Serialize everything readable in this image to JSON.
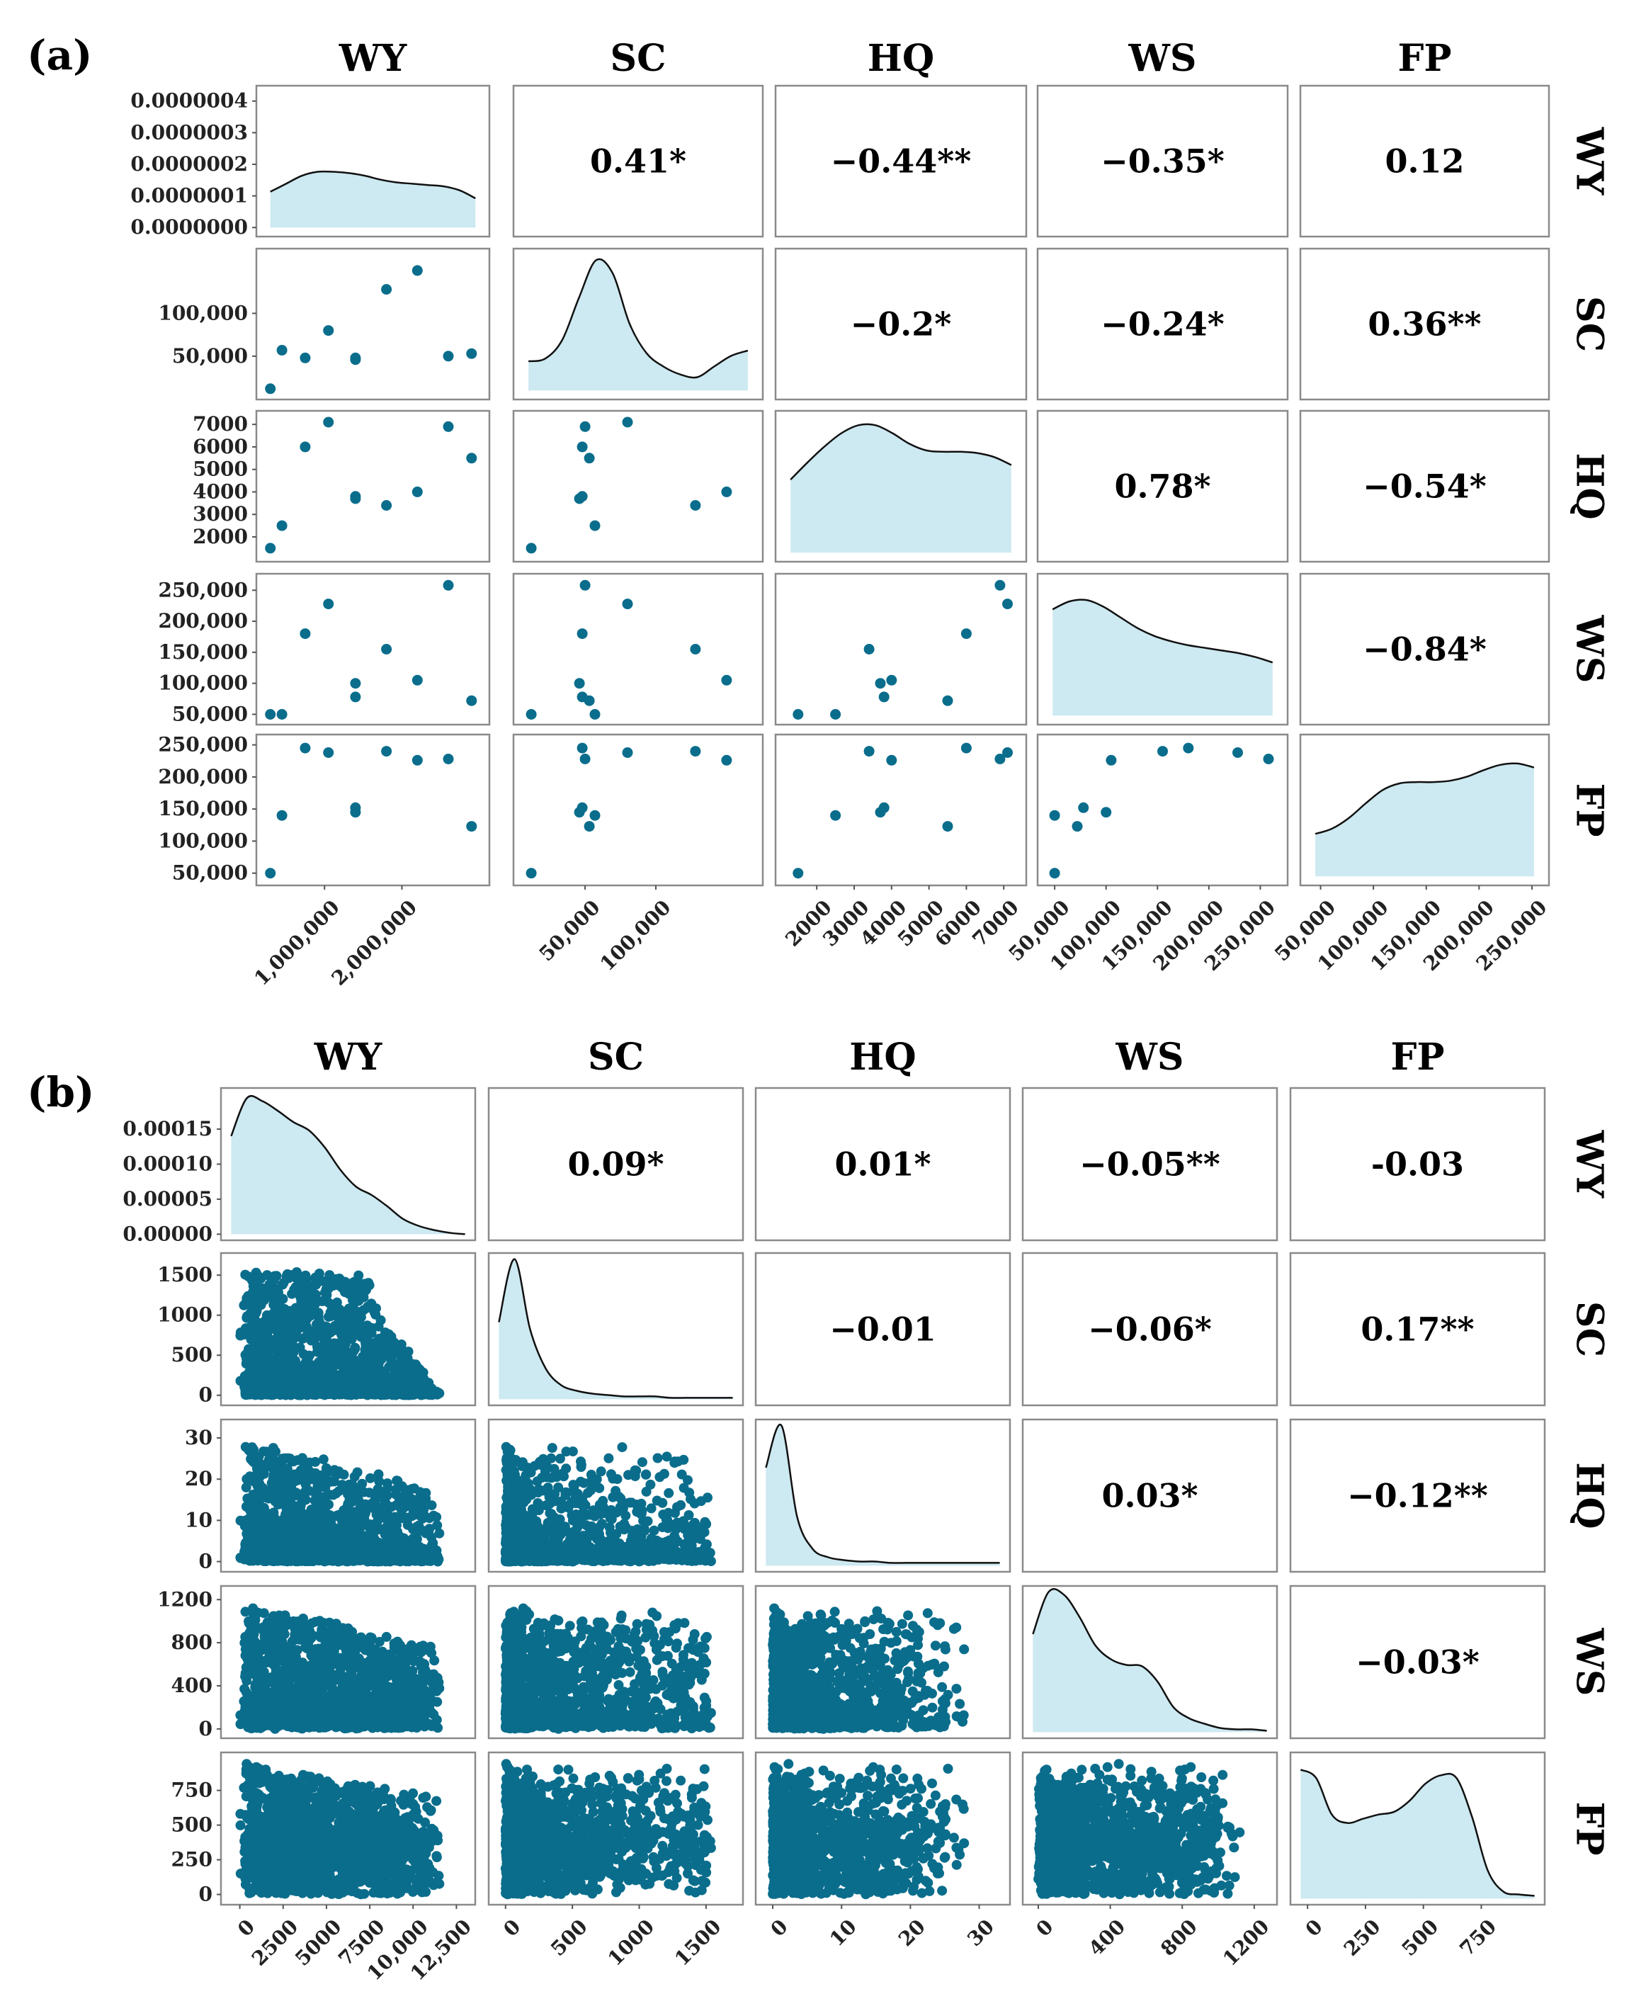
{
  "colors": {
    "point": "#0a6d8c",
    "density_fill": "#cde9f1",
    "density_line": "#111111",
    "frame": "#8a8a8a"
  },
  "variables": [
    "WY",
    "SC",
    "HQ",
    "WS",
    "FP"
  ],
  "chart_data": [
    {
      "type": "scatter-matrix",
      "panel_label": "(a)",
      "column_headers": [
        "WY",
        "SC",
        "HQ",
        "WS",
        "FP"
      ],
      "row_headers": [
        "WY",
        "SC",
        "HQ",
        "WS",
        "FP"
      ],
      "correlations": [
        {
          "row": 0,
          "col": 1,
          "label": "0.41*"
        },
        {
          "row": 0,
          "col": 2,
          "label": "−0.44**"
        },
        {
          "row": 0,
          "col": 3,
          "label": "−0.35*"
        },
        {
          "row": 0,
          "col": 4,
          "label": "0.12"
        },
        {
          "row": 1,
          "col": 2,
          "label": "−0.2*"
        },
        {
          "row": 1,
          "col": 3,
          "label": "−0.24*"
        },
        {
          "row": 1,
          "col": 4,
          "label": "0.36**"
        },
        {
          "row": 2,
          "col": 3,
          "label": "0.78*"
        },
        {
          "row": 2,
          "col": 4,
          "label": "−0.54*"
        },
        {
          "row": 3,
          "col": 4,
          "label": "−0.84*"
        }
      ],
      "ranges": {
        "WY": [
          300000,
          2950000
        ],
        "SC": [
          10000,
          165000
        ],
        "HQ": [
          1300,
          7200
        ],
        "WS": [
          48000,
          262000
        ],
        "FP": [
          45000,
          252000
        ]
      },
      "x_ticks": {
        "WY": [
          {
            "v": 1000000,
            "t": "1,000,000"
          },
          {
            "v": 2000000,
            "t": "2,000,000"
          }
        ],
        "SC": [
          {
            "v": 50000,
            "t": "50,000"
          },
          {
            "v": 100000,
            "t": "100,000"
          }
        ],
        "HQ": [
          {
            "v": 2000,
            "t": "2000"
          },
          {
            "v": 3000,
            "t": "3000"
          },
          {
            "v": 4000,
            "t": "4000"
          },
          {
            "v": 5000,
            "t": "5000"
          },
          {
            "v": 6000,
            "t": "6000"
          },
          {
            "v": 7000,
            "t": "7000"
          }
        ],
        "WS": [
          {
            "v": 50000,
            "t": "50,000"
          },
          {
            "v": 100000,
            "t": "100,000"
          },
          {
            "v": 150000,
            "t": "150,000"
          },
          {
            "v": 200000,
            "t": "200,000"
          },
          {
            "v": 250000,
            "t": "250,000"
          }
        ],
        "FP": [
          {
            "v": 50000,
            "t": "50,000"
          },
          {
            "v": 100000,
            "t": "100,000"
          },
          {
            "v": 150000,
            "t": "150,000"
          },
          {
            "v": 200000,
            "t": "200,000"
          },
          {
            "v": 250000,
            "t": "250,000"
          }
        ]
      },
      "y_ticks": {
        "WY": [
          {
            "v": 0,
            "t": "0.0000000"
          },
          {
            "v": 1e-07,
            "t": "0.0000001"
          },
          {
            "v": 2e-07,
            "t": "0.0000002"
          },
          {
            "v": 3e-07,
            "t": "0.0000003"
          },
          {
            "v": 4e-07,
            "t": "0.0000004"
          }
        ],
        "SC": [
          {
            "v": 50000,
            "t": "50,000"
          },
          {
            "v": 100000,
            "t": "100,000"
          }
        ],
        "HQ": [
          {
            "v": 2000,
            "t": "2000"
          },
          {
            "v": 3000,
            "t": "3000"
          },
          {
            "v": 4000,
            "t": "4000"
          },
          {
            "v": 5000,
            "t": "5000"
          },
          {
            "v": 6000,
            "t": "6000"
          },
          {
            "v": 7000,
            "t": "7000"
          }
        ],
        "WS": [
          {
            "v": 50000,
            "t": "50,000"
          },
          {
            "v": 100000,
            "t": "100,000"
          },
          {
            "v": 150000,
            "t": "150,000"
          },
          {
            "v": 200000,
            "t": "200,000"
          },
          {
            "v": 250000,
            "t": "250,000"
          }
        ],
        "FP": [
          {
            "v": 50000,
            "t": "50,000"
          },
          {
            "v": 100000,
            "t": "100,000"
          },
          {
            "v": 150000,
            "t": "150,000"
          },
          {
            "v": 200000,
            "t": "200,000"
          },
          {
            "v": 250000,
            "t": "250,000"
          }
        ]
      },
      "density_y_range": [
        0,
        4.2e-07
      ],
      "points": {
        "WY": [
          300000,
          450000,
          750000,
          1050000,
          1400000,
          1400000,
          1800000,
          2200000,
          2600000,
          2900000
        ],
        "SC": [
          12000,
          57000,
          48000,
          80000,
          48000,
          46000,
          128000,
          150000,
          50000,
          53000
        ],
        "HQ": [
          1500,
          2500,
          6000,
          7100,
          3800,
          3700,
          3400,
          4000,
          6900,
          5500
        ],
        "WS": [
          50000,
          50000,
          180000,
          228000,
          78000,
          100000,
          155000,
          105000,
          258000,
          72000
        ],
        "FP": [
          50000,
          140000,
          245000,
          238000,
          152000,
          145000,
          240000,
          226000,
          228000,
          123000
        ]
      },
      "density_curves": {
        "WY": [
          0.27,
          0.33,
          0.39,
          0.42,
          0.42,
          0.41,
          0.39,
          0.36,
          0.34,
          0.33,
          0.32,
          0.31,
          0.28,
          0.22
        ],
        "SC": [
          0.22,
          0.24,
          0.38,
          0.7,
          0.98,
          0.88,
          0.5,
          0.28,
          0.18,
          0.12,
          0.1,
          0.18,
          0.26,
          0.3
        ],
        "HQ": [
          0.55,
          0.68,
          0.8,
          0.9,
          0.96,
          0.96,
          0.9,
          0.82,
          0.77,
          0.76,
          0.76,
          0.75,
          0.72,
          0.66
        ],
        "WS": [
          0.8,
          0.86,
          0.87,
          0.82,
          0.74,
          0.66,
          0.6,
          0.56,
          0.53,
          0.51,
          0.49,
          0.47,
          0.44,
          0.4
        ],
        "FP": [
          0.32,
          0.36,
          0.44,
          0.55,
          0.65,
          0.7,
          0.71,
          0.71,
          0.72,
          0.75,
          0.8,
          0.84,
          0.85,
          0.82
        ]
      }
    },
    {
      "type": "scatter-matrix",
      "panel_label": "(b)",
      "column_headers": [
        "WY",
        "SC",
        "HQ",
        "WS",
        "FP"
      ],
      "row_headers": [
        "WY",
        "SC",
        "HQ",
        "WS",
        "FP"
      ],
      "correlations": [
        {
          "row": 0,
          "col": 1,
          "label": "0.09*"
        },
        {
          "row": 0,
          "col": 2,
          "label": "0.01*"
        },
        {
          "row": 0,
          "col": 3,
          "label": "−0.05**"
        },
        {
          "row": 0,
          "col": 4,
          "label": "-0.03"
        },
        {
          "row": 1,
          "col": 2,
          "label": "−0.01"
        },
        {
          "row": 1,
          "col": 3,
          "label": "−0.06*"
        },
        {
          "row": 1,
          "col": 4,
          "label": "0.17**"
        },
        {
          "row": 2,
          "col": 3,
          "label": "0.03*"
        },
        {
          "row": 2,
          "col": 4,
          "label": "−0.12**"
        },
        {
          "row": 3,
          "col": 4,
          "label": "−0.03*"
        }
      ],
      "ranges": {
        "WY": [
          -500,
          13000
        ],
        "SC": [
          -50,
          1700
        ],
        "HQ": [
          -1,
          33
        ],
        "WS": [
          -30,
          1270
        ],
        "FP": [
          -30,
          980
        ]
      },
      "x_ticks": {
        "WY": [
          {
            "v": 0,
            "t": "0"
          },
          {
            "v": 2500,
            "t": "2500"
          },
          {
            "v": 5000,
            "t": "5000"
          },
          {
            "v": 7500,
            "t": "7500"
          },
          {
            "v": 10000,
            "t": "10,000"
          },
          {
            "v": 12500,
            "t": "12,500"
          }
        ],
        "SC": [
          {
            "v": 0,
            "t": "0"
          },
          {
            "v": 500,
            "t": "500"
          },
          {
            "v": 1000,
            "t": "1000"
          },
          {
            "v": 1500,
            "t": "1500"
          }
        ],
        "HQ": [
          {
            "v": 0,
            "t": "0"
          },
          {
            "v": 10,
            "t": "10"
          },
          {
            "v": 20,
            "t": "20"
          },
          {
            "v": 30,
            "t": "30"
          }
        ],
        "WS": [
          {
            "v": 0,
            "t": "0"
          },
          {
            "v": 400,
            "t": "400"
          },
          {
            "v": 800,
            "t": "800"
          },
          {
            "v": 1200,
            "t": "1200"
          }
        ],
        "FP": [
          {
            "v": 0,
            "t": "0"
          },
          {
            "v": 250,
            "t": "250"
          },
          {
            "v": 500,
            "t": "500"
          },
          {
            "v": 750,
            "t": "750"
          }
        ]
      },
      "y_ticks": {
        "WY": [
          {
            "v": 0,
            "t": "0.00000"
          },
          {
            "v": 5e-05,
            "t": "0.00005"
          },
          {
            "v": 0.0001,
            "t": "0.00010"
          },
          {
            "v": 0.00015,
            "t": "0.00015"
          }
        ],
        "SC": [
          {
            "v": 0,
            "t": "0"
          },
          {
            "v": 500,
            "t": "500"
          },
          {
            "v": 1000,
            "t": "1000"
          },
          {
            "v": 1500,
            "t": "1500"
          }
        ],
        "HQ": [
          {
            "v": 0,
            "t": "0"
          },
          {
            "v": 10,
            "t": "10"
          },
          {
            "v": 20,
            "t": "20"
          },
          {
            "v": 30,
            "t": "30"
          }
        ],
        "WS": [
          {
            "v": 0,
            "t": "0"
          },
          {
            "v": 400,
            "t": "400"
          },
          {
            "v": 800,
            "t": "800"
          },
          {
            "v": 1200,
            "t": "1200"
          }
        ],
        "FP": [
          {
            "v": 0,
            "t": "0"
          },
          {
            "v": 250,
            "t": "250"
          },
          {
            "v": 500,
            "t": "500"
          },
          {
            "v": 750,
            "t": "750"
          }
        ]
      },
      "density_y_range": [
        0,
        0.0002
      ],
      "sample": {
        "count": 1500,
        "seed": 7,
        "shapes": {
          "WY": [
            0,
            13000
          ],
          "SC": [
            0,
            1650
          ],
          "HQ": [
            0,
            32
          ],
          "WS": [
            0,
            1220
          ],
          "FP": [
            0,
            950
          ]
        }
      },
      "density_curves": {
        "WY": [
          0.7,
          0.97,
          0.95,
          0.88,
          0.8,
          0.74,
          0.62,
          0.46,
          0.34,
          0.28,
          0.2,
          0.11,
          0.06,
          0.03,
          0.01,
          0.0
        ],
        "SC": [
          0.55,
          1.0,
          0.5,
          0.22,
          0.1,
          0.06,
          0.04,
          0.03,
          0.02,
          0.02,
          0.02,
          0.01,
          0.01,
          0.01,
          0.01,
          0.01
        ],
        "HQ": [
          0.7,
          1.0,
          0.35,
          0.12,
          0.06,
          0.04,
          0.03,
          0.03,
          0.02,
          0.02,
          0.02,
          0.02,
          0.02,
          0.02,
          0.02,
          0.02
        ],
        "WS": [
          0.7,
          1.0,
          0.98,
          0.82,
          0.62,
          0.52,
          0.48,
          0.47,
          0.36,
          0.18,
          0.1,
          0.06,
          0.03,
          0.02,
          0.02,
          0.01
        ],
        "FP": [
          0.92,
          0.86,
          0.6,
          0.54,
          0.57,
          0.6,
          0.62,
          0.7,
          0.82,
          0.88,
          0.86,
          0.58,
          0.2,
          0.05,
          0.03,
          0.02
        ]
      }
    }
  ]
}
